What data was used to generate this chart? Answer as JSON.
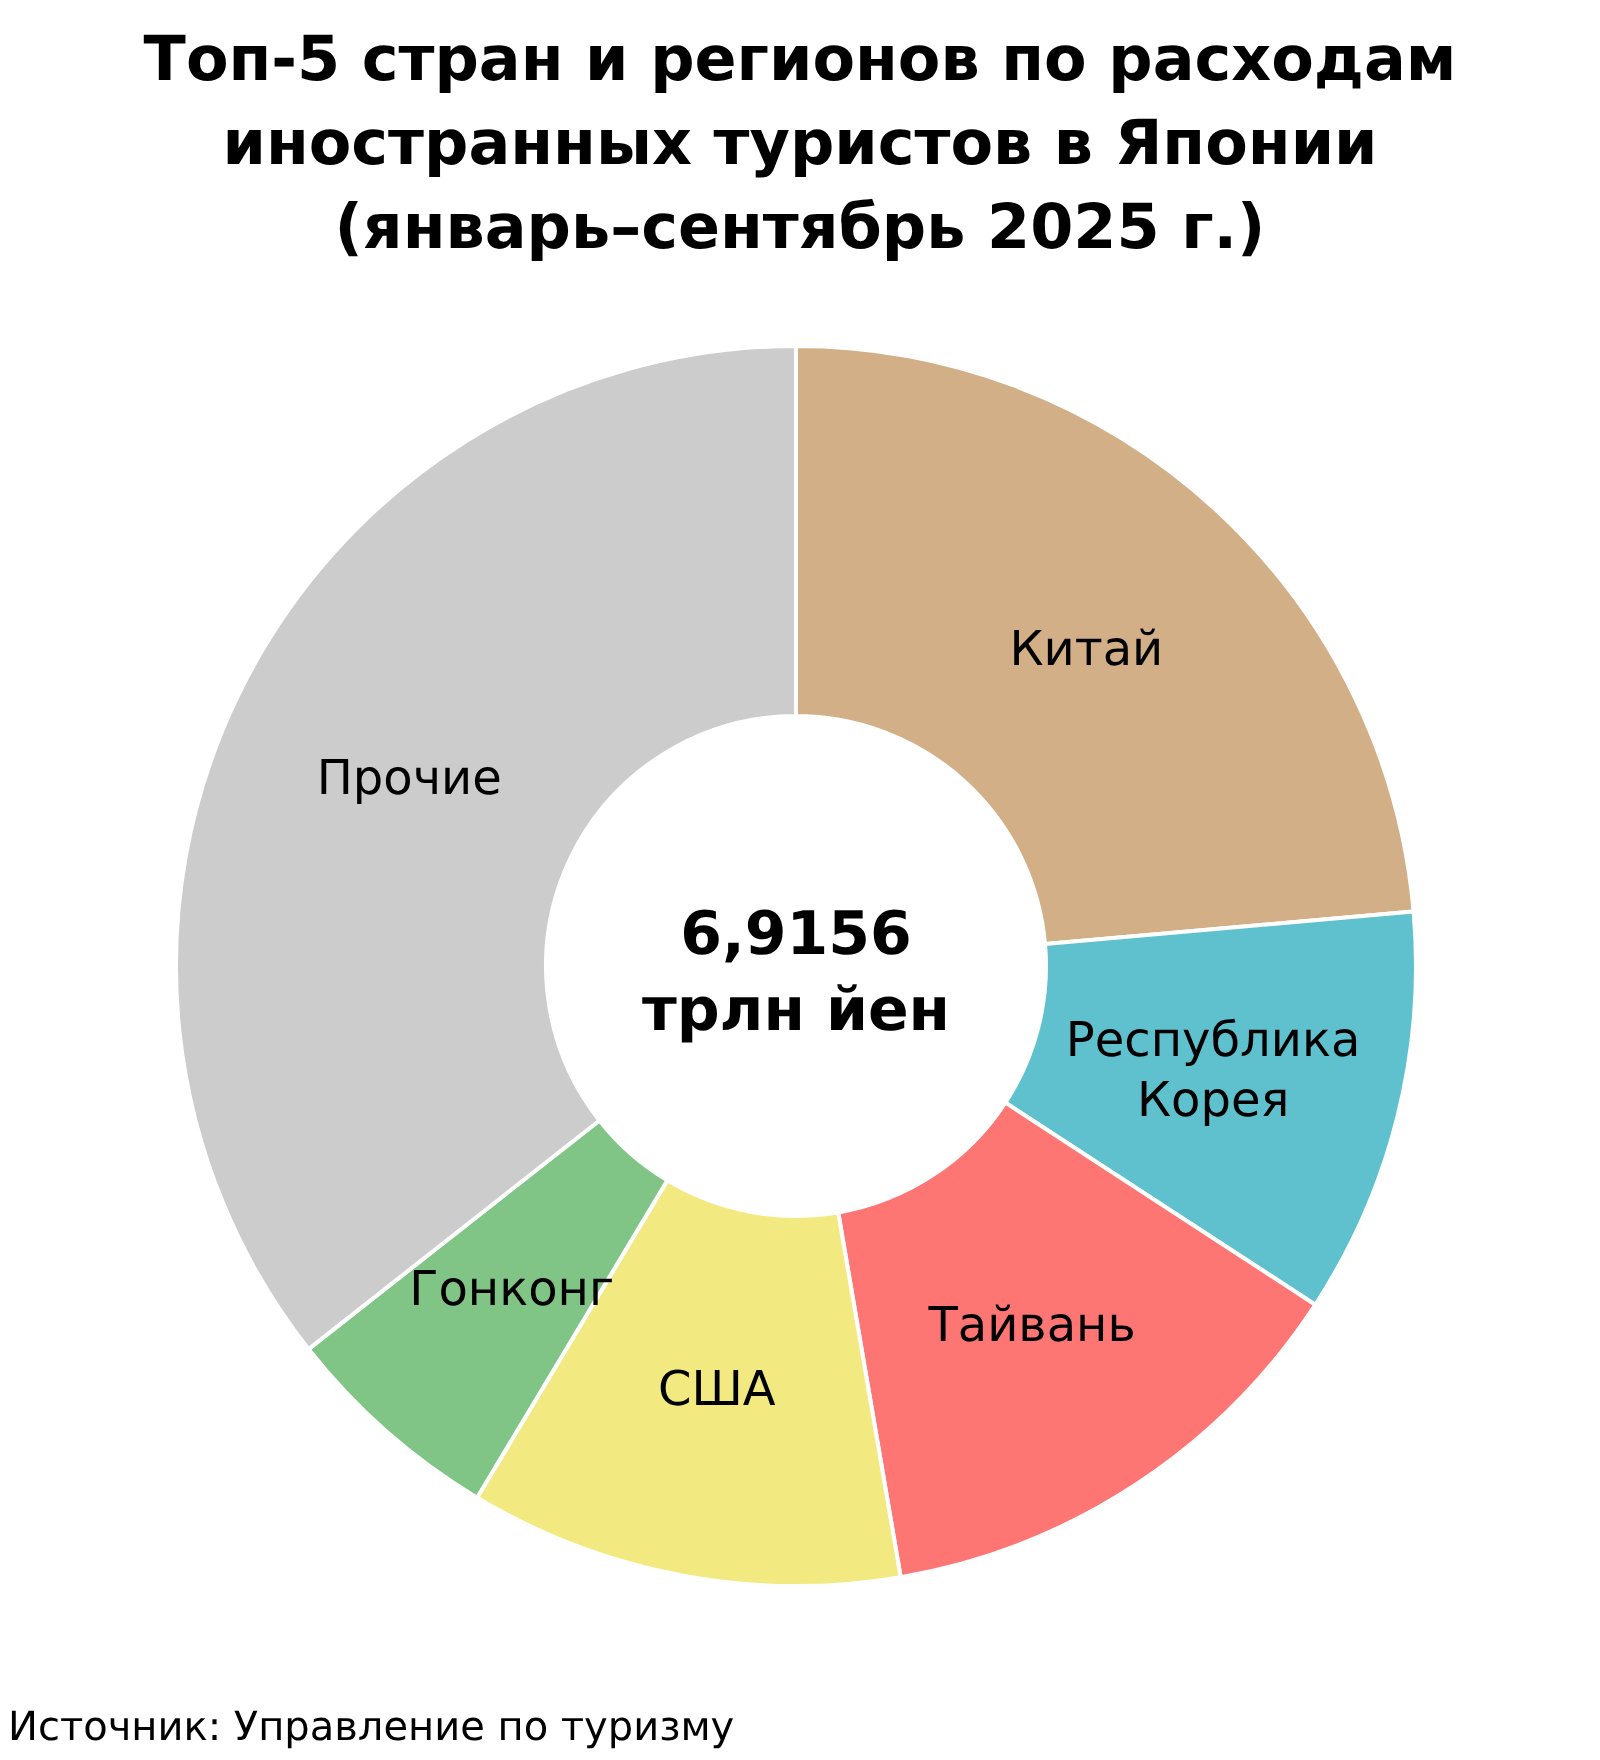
{
  "chart_data": {
    "type": "donut",
    "title": "Топ-5 стран и регионов по расходам иностранных туристов в Японии (январь–сентябрь 2025 г.)",
    "categories": [
      "Китай",
      "Республика Корея",
      "Тайвань",
      "США",
      "Гонконг",
      "Прочие"
    ],
    "values": [
      23.6,
      10.6,
      13.1,
      11.3,
      5.8,
      35.6
    ],
    "colors": [
      "#d2af87",
      "#5fc1ce",
      "#fe7674",
      "#f2ea80",
      "#80c586",
      "#cccccc"
    ],
    "annotations": [
      "6,9156 трлн йен",
      "Источник: Управление по туризму"
    ]
  }
}
